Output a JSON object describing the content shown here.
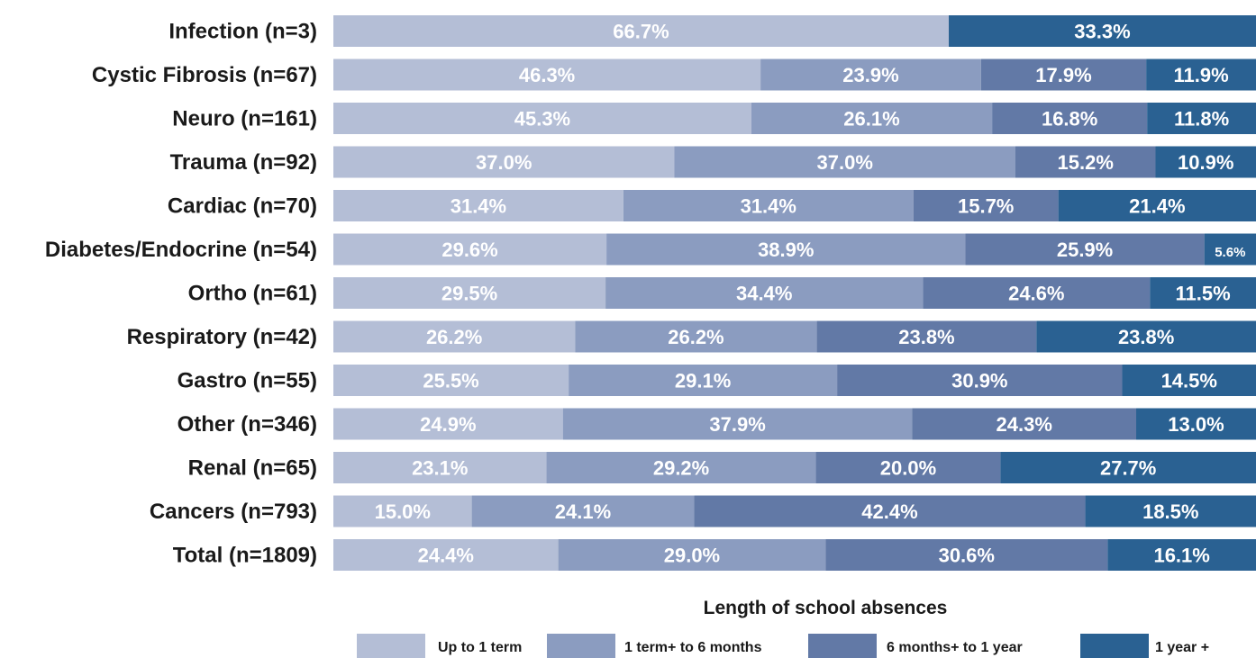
{
  "chart_data": {
    "type": "bar",
    "orientation": "horizontal",
    "stacked": true,
    "percent_stacked": true,
    "categories": [
      "Infection (n=3)",
      "Cystic Fibrosis (n=67)",
      "Neuro (n=161)",
      "Trauma (n=92)",
      "Cardiac (n=70)",
      "Diabetes/Endocrine (n=54)",
      "Ortho (n=61)",
      "Respiratory (n=42)",
      "Gastro (n=55)",
      "Other (n=346)",
      "Renal (n=65)",
      "Cancers (n=793)",
      "Total (n=1809)"
    ],
    "series": [
      {
        "name": "Up to 1 term",
        "color": "#b4bed6",
        "values": [
          66.7,
          46.3,
          45.3,
          37.0,
          31.4,
          29.6,
          29.5,
          26.2,
          25.5,
          24.9,
          23.1,
          15.0,
          24.4
        ],
        "labels": [
          "66.7%",
          "46.3%",
          "45.3%",
          "37.0%",
          "31.4%",
          "29.6%",
          "29.5%",
          "26.2%",
          "25.5%",
          "24.9%",
          "23.1%",
          "15.0%",
          "24.4%"
        ]
      },
      {
        "name": "1 term+ to 6 months",
        "color": "#8b9cc0",
        "values": [
          0,
          23.9,
          26.1,
          37.0,
          31.4,
          38.9,
          34.4,
          26.2,
          29.1,
          37.9,
          29.2,
          24.1,
          29.0
        ],
        "labels": [
          "",
          "23.9%",
          "26.1%",
          "37.0%",
          "31.4%",
          "38.9%",
          "34.4%",
          "26.2%",
          "29.1%",
          "37.9%",
          "29.2%",
          "24.1%",
          "29.0%"
        ]
      },
      {
        "name": "6 months+ to 1 year",
        "color": "#6279a6",
        "values": [
          0,
          17.9,
          16.8,
          15.2,
          15.7,
          25.9,
          24.6,
          23.8,
          30.9,
          24.3,
          20.0,
          42.4,
          30.6
        ],
        "labels": [
          "",
          "17.9%",
          "16.8%",
          "15.2%",
          "15.7%",
          "25.9%",
          "24.6%",
          "23.8%",
          "30.9%",
          "24.3%",
          "20.0%",
          "42.4%",
          "30.6%"
        ]
      },
      {
        "name": "1 year +",
        "color": "#2a6192",
        "values": [
          33.3,
          11.9,
          11.8,
          10.9,
          21.4,
          5.6,
          11.5,
          23.8,
          14.5,
          13.0,
          27.7,
          18.5,
          16.1
        ],
        "labels": [
          "33.3%",
          "11.9%",
          "11.8%",
          "10.9%",
          "21.4%",
          "5.6%",
          "11.5%",
          "23.8%",
          "14.5%",
          "13.0%",
          "27.7%",
          "18.5%",
          "16.1%"
        ]
      }
    ],
    "legend_title": "Length of school absences",
    "legend_placement": "bottom",
    "grid": false
  }
}
